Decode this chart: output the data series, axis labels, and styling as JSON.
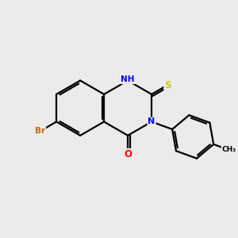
{
  "background_color": "#ebebeb",
  "bond_color": "#000000",
  "atom_colors": {
    "N": "#0000ff",
    "O": "#ff0000",
    "S": "#cccc00",
    "Br": "#cc6600",
    "C": "#000000"
  },
  "figsize": [
    3.0,
    3.0
  ],
  "dpi": 100
}
